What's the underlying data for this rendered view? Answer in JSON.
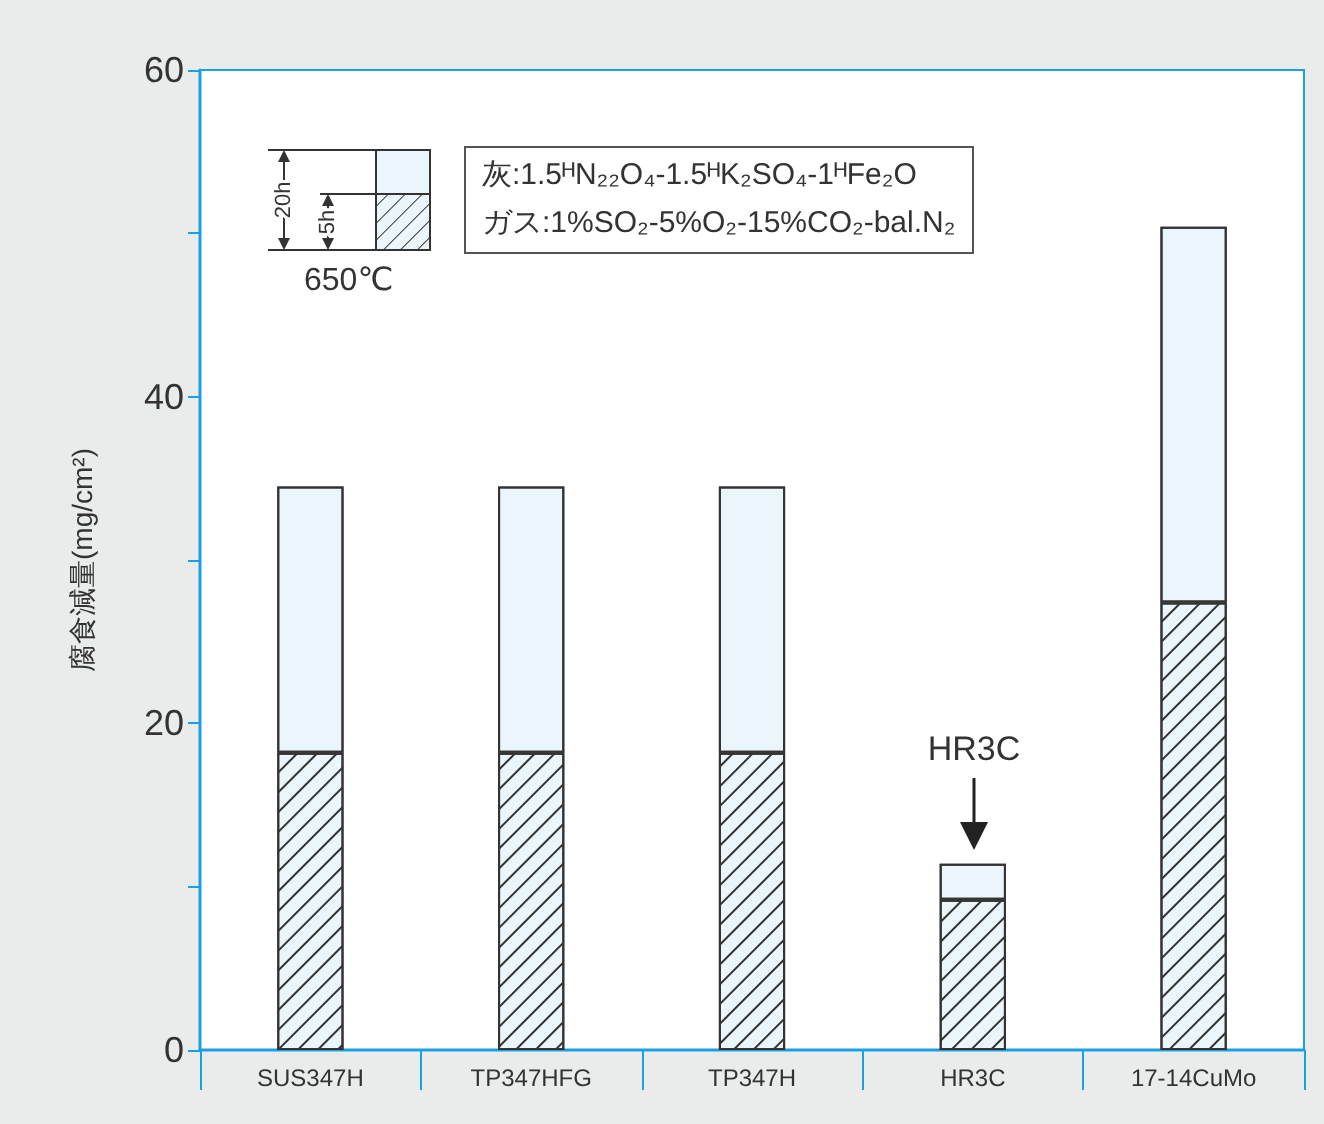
{
  "chart_data": {
    "type": "bar",
    "stacked": true,
    "ylabel": "腐食減量(mg/cm²)",
    "categories": [
      "SUS347H",
      "TP347HFG",
      "TP347H",
      "HR3C",
      "17-14CuMo"
    ],
    "series": [
      {
        "color": "#eaf5fc",
        "values": [
          18.2,
          18.2,
          18.2,
          9.2,
          27.4
        ]
      },
      {
        "color": "#eaf5fc",
        "values": [
          16.3,
          16.3,
          16.3,
          2.2,
          23.0
        ]
      }
    ],
    "ylim": [
      0,
      60
    ],
    "yticks": [
      0,
      {
        "value": 10,
        "label": null
      },
      20,
      {
        "value": 30,
        "label": null
      },
      40,
      {
        "value": 50,
        "label": null
      },
      60
    ],
    "grid": false,
    "annotations": [
      "灰:1.5ᴴN₂₂O₄-1.5ᴴK₂SO₄-1ᴴFe₂O",
      "ガス:1%SO₂-5%O₂-15%CO₂-bal.N₂",
      "20h",
      "5h",
      "650℃",
      "HR3C"
    ]
  }
}
